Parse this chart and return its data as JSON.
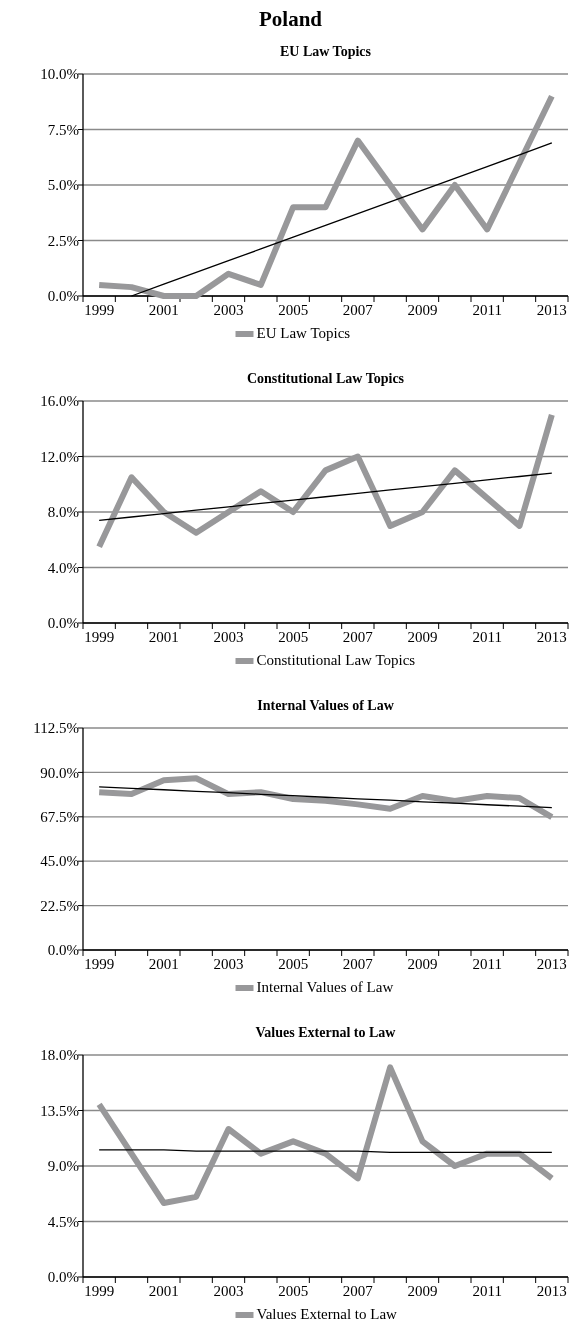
{
  "chart_data": [
    {
      "type": "line",
      "title": "EU Law Topics",
      "annotations": [
        "Poland"
      ],
      "categories": [
        "1999",
        null,
        "2001",
        null,
        "2003",
        null,
        "2005",
        null,
        "2007",
        null,
        "2009",
        null,
        "2011",
        null,
        "2013"
      ],
      "series": [
        {
          "name": "EU Law Topics",
          "color": "#98989a",
          "values": [
            0.5,
            0.4,
            0,
            0,
            1.0,
            0.5,
            4,
            4,
            7,
            5,
            3,
            5,
            3,
            6,
            9
          ]
        },
        {
          "color": "#000000",
          "values": [
            null,
            0,
            0.53,
            1.06,
            1.59,
            2.12,
            2.65,
            3.18,
            3.71,
            4.24,
            4.77,
            5.3,
            5.83,
            6.36,
            6.9
          ]
        }
      ],
      "ylim": [
        0,
        10
      ],
      "yticks": [
        {
          "value": 0,
          "label": "0.0%"
        },
        {
          "value": 2.5,
          "label": "2.5%"
        },
        {
          "value": 5,
          "label": "5.0%"
        },
        {
          "value": 7.5,
          "label": "7.5%"
        },
        {
          "value": 10,
          "label": "10.0%"
        }
      ],
      "grid": "y",
      "legend": "bottom"
    },
    {
      "type": "line",
      "title": "Constitutional Law Topics",
      "categories": [
        "1999",
        null,
        "2001",
        null,
        "2003",
        null,
        "2005",
        null,
        "2007",
        null,
        "2009",
        null,
        "2011",
        null,
        "2013"
      ],
      "series": [
        {
          "name": "Constitutional Law Topics",
          "color": "#98989a",
          "values": [
            5.5,
            10.5,
            8,
            6.5,
            8,
            9.5,
            8,
            11,
            12,
            7,
            8,
            11,
            9,
            7,
            15
          ]
        },
        {
          "color": "#000000",
          "values": [
            7.4,
            7.64,
            7.89,
            8.13,
            8.37,
            8.62,
            8.86,
            9.1,
            9.34,
            9.59,
            9.83,
            10.07,
            10.32,
            10.56,
            10.8
          ]
        }
      ],
      "ylim": [
        0,
        16
      ],
      "yticks": [
        {
          "value": 0,
          "label": "0.0%"
        },
        {
          "value": 4,
          "label": "4.0%"
        },
        {
          "value": 8,
          "label": "8.0%"
        },
        {
          "value": 12,
          "label": "12.0%"
        },
        {
          "value": 16,
          "label": "16.0%"
        }
      ],
      "grid": "y",
      "legend": "bottom"
    },
    {
      "type": "line",
      "title": "Internal Values of Law",
      "categories": [
        "1999",
        null,
        "2001",
        null,
        "2003",
        null,
        "2005",
        null,
        "2007",
        null,
        "2009",
        null,
        "2011",
        null,
        "2013"
      ],
      "series": [
        {
          "name": "Internal Values of Law",
          "color": "#98989a",
          "values": [
            80,
            79,
            86,
            87,
            79,
            80,
            76.5,
            75.6,
            73.8,
            71.6,
            78,
            75.5,
            78,
            77,
            67.3
          ]
        },
        {
          "color": "#000000",
          "values": [
            82.7,
            81.9,
            81.2,
            80.4,
            79.7,
            78.9,
            78.2,
            77.4,
            76.6,
            75.9,
            75.1,
            74.4,
            73.6,
            72.9,
            72.1
          ]
        }
      ],
      "ylim": [
        0,
        112.5
      ],
      "yticks": [
        {
          "value": 0,
          "label": "0.0%"
        },
        {
          "value": 22.5,
          "label": "22.5%"
        },
        {
          "value": 45,
          "label": "45.0%"
        },
        {
          "value": 67.5,
          "label": "67.5%"
        },
        {
          "value": 90,
          "label": "90.0%"
        },
        {
          "value": 112.5,
          "label": "112.5%"
        }
      ],
      "grid": "y",
      "legend": "bottom"
    },
    {
      "type": "line",
      "title": "Values External to Law",
      "categories": [
        "1999",
        null,
        "2001",
        null,
        "2003",
        null,
        "2005",
        null,
        "2007",
        null,
        "2009",
        null,
        "2011",
        null,
        "2013"
      ],
      "series": [
        {
          "name": "Values External to Law",
          "color": "#98989a",
          "values": [
            14,
            10,
            6,
            6.5,
            12,
            10,
            11,
            10,
            8,
            17,
            11,
            9,
            10,
            10,
            8
          ]
        },
        {
          "color": "#000000",
          "values": [
            10.3,
            10.3,
            10.3,
            10.2,
            10.2,
            10.2,
            10.2,
            10.2,
            10.2,
            10.1,
            10.1,
            10.1,
            10.1,
            10.1,
            10.1
          ]
        }
      ],
      "ylim": [
        0,
        18
      ],
      "yticks": [
        {
          "value": 0,
          "label": "0.0%"
        },
        {
          "value": 4.5,
          "label": "4.5%"
        },
        {
          "value": 9,
          "label": "9.0%"
        },
        {
          "value": 13.5,
          "label": "13.5%"
        },
        {
          "value": 18,
          "label": "18.0%"
        }
      ],
      "grid": "y",
      "legend": "bottom"
    }
  ]
}
